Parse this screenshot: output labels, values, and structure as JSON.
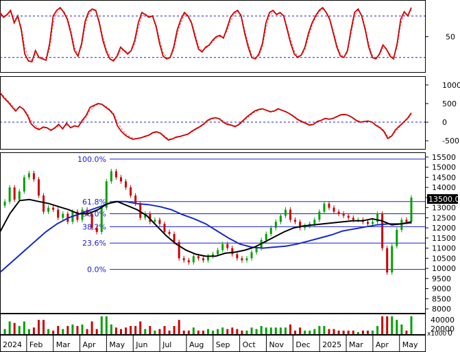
{
  "chart_data": [
    {
      "type": "line",
      "panel": "stochastic",
      "ylim": [
        0,
        100
      ],
      "yticks": [
        50
      ],
      "reference_lines": [
        20,
        80
      ],
      "series": [
        {
          "values": [
            85,
            78,
            82,
            88,
            70,
            80,
            60,
            25,
            15,
            14,
            30,
            20,
            18,
            16,
            40,
            80,
            88,
            92,
            85,
            75,
            55,
            30,
            22,
            40,
            72,
            86,
            90,
            88,
            70,
            45,
            28,
            18,
            15,
            22,
            35,
            30,
            25,
            30,
            45,
            70,
            85,
            82,
            78,
            80,
            65,
            40,
            22,
            18,
            20,
            35,
            60,
            75,
            85,
            80,
            70,
            50,
            32,
            28,
            35,
            38,
            45,
            50,
            52,
            48,
            62,
            78,
            85,
            88,
            80,
            55,
            35,
            20,
            18,
            25,
            40,
            70,
            85,
            88,
            82,
            85,
            80,
            60,
            40,
            25,
            20,
            24,
            35,
            55,
            70,
            80,
            88,
            92,
            85,
            75,
            55,
            35,
            22,
            20,
            30,
            60,
            85,
            90,
            80,
            60,
            35,
            20,
            18,
            25,
            38,
            32,
            22,
            18,
            40,
            75,
            86,
            80,
            92
          ]
        },
        {
          "values": [
            82,
            80,
            81,
            85,
            75,
            78,
            65,
            35,
            20,
            16,
            25,
            22,
            19,
            17,
            32,
            70,
            84,
            90,
            87,
            78,
            60,
            35,
            25,
            35,
            65,
            82,
            88,
            88,
            74,
            50,
            32,
            22,
            17,
            20,
            30,
            31,
            27,
            29,
            40,
            62,
            80,
            82,
            80,
            80,
            68,
            46,
            27,
            20,
            20,
            30,
            54,
            70,
            82,
            81,
            72,
            55,
            36,
            30,
            33,
            37,
            43,
            48,
            50,
            49,
            58,
            72,
            82,
            86,
            82,
            60,
            40,
            24,
            19,
            22,
            35,
            62,
            80,
            86,
            83,
            84,
            81,
            64,
            45,
            29,
            22,
            23,
            31,
            50,
            66,
            77,
            86,
            90,
            86,
            77,
            59,
            39,
            25,
            21,
            27,
            54,
            80,
            88,
            82,
            64,
            40,
            23,
            19,
            23,
            34,
            32,
            25,
            20,
            35,
            68,
            82,
            82,
            88
          ]
        }
      ]
    },
    {
      "type": "line",
      "panel": "oscillator",
      "ylim": [
        -700,
        1200
      ],
      "yticks": [
        1000,
        500,
        0,
        -500
      ],
      "reference_lines": [
        0
      ],
      "series": [
        {
          "values": [
            800,
            650,
            550,
            420,
            300,
            420,
            350,
            180,
            -50,
            -150,
            -200,
            -130,
            -150,
            -220,
            -150,
            -60,
            -180,
            -30,
            -150,
            -100,
            -120,
            50,
            180,
            400,
            450,
            500,
            480,
            400,
            320,
            200,
            -100,
            -250,
            -350,
            -420,
            -460,
            -440,
            -420,
            -380,
            -350,
            -280,
            -260,
            -300,
            -400,
            -480,
            -450,
            -400,
            -380,
            -350,
            -320,
            -240,
            -180,
            -120,
            -50,
            50,
            100,
            120,
            90,
            0,
            -60,
            -80,
            -120,
            -60,
            40,
            140,
            220,
            300,
            340,
            360,
            320,
            280,
            300,
            360,
            320,
            280,
            220,
            150,
            70,
            20,
            -30,
            -80,
            -60,
            20,
            50,
            100,
            80,
            100,
            150,
            200,
            210,
            180,
            120,
            40,
            0,
            20,
            30,
            0,
            -90,
            -150,
            -250,
            -440,
            -370,
            -200,
            -100,
            0,
            100,
            250
          ]
        },
        {
          "values": [
            780,
            700,
            580,
            470,
            350,
            400,
            360,
            230,
            30,
            -80,
            -180,
            -160,
            -150,
            -200,
            -170,
            -100,
            -150,
            -80,
            -130,
            -110,
            -110,
            10,
            120,
            320,
            420,
            480,
            480,
            430,
            350,
            240,
            0,
            -170,
            -300,
            -380,
            -430,
            -440,
            -430,
            -400,
            -360,
            -300,
            -270,
            -290,
            -370,
            -450,
            -450,
            -420,
            -390,
            -360,
            -330,
            -260,
            -200,
            -140,
            -70,
            20,
            80,
            110,
            100,
            30,
            -30,
            -70,
            -100,
            -80,
            10,
            100,
            190,
            270,
            320,
            350,
            330,
            290,
            290,
            340,
            330,
            290,
            230,
            170,
            90,
            30,
            -10,
            -60,
            -60,
            0,
            40,
            90,
            85,
            95,
            140,
            180,
            200,
            185,
            130,
            60,
            15,
            15,
            25,
            5,
            -70,
            -130,
            -220,
            -380,
            -380,
            -250,
            -130,
            -20,
            80,
            200
          ]
        }
      ]
    },
    {
      "type": "line",
      "panel": "price",
      "ylim": [
        7800,
        15700
      ],
      "yticks": [
        8000,
        8500,
        9000,
        9500,
        10000,
        10500,
        11000,
        11500,
        12000,
        12500,
        13000,
        13500,
        14000,
        14500,
        15000,
        15500
      ],
      "x_ticks": [
        "2024",
        "Feb",
        "Mar",
        "Apr",
        "May",
        "Jun",
        "Jul",
        "Aug",
        "Sep",
        "Oct",
        "Nov",
        "Dec",
        "2025",
        "Mar",
        "Apr",
        "May"
      ],
      "last_price_label": "13500.00",
      "fibonacci": [
        {
          "label": "100.0%",
          "value": 15400
        },
        {
          "label": "61.8%",
          "value": 13300
        },
        {
          "label": "50.0%",
          "value": 12700
        },
        {
          "label": "38.2%",
          "value": 12060
        },
        {
          "label": "23.6%",
          "value": 11250
        },
        {
          "label": "0.0%",
          "value": 9950
        }
      ],
      "series": [
        {
          "values": [
            13100,
            13300,
            14000,
            13400,
            13800,
            14500,
            14700,
            14400,
            13600,
            12800,
            13000,
            12900,
            12500,
            12700,
            12300,
            12800,
            12400,
            12900,
            12700,
            12000,
            11800,
            13000,
            14300,
            14800,
            14500,
            14300,
            14000,
            13600,
            13200,
            12500,
            12700,
            12300,
            12400,
            12200,
            11800,
            11700,
            11300,
            10500,
            10400,
            10300,
            10600,
            10500,
            10400,
            10600,
            10700,
            10900,
            11200,
            11000,
            10700,
            10500,
            10400,
            10500,
            10800,
            11000,
            11400,
            11700,
            12000,
            12300,
            12600,
            12900,
            12400,
            12300,
            12000,
            12100,
            12200,
            12400,
            12800,
            13200,
            13000,
            12800,
            12700,
            12600,
            12500,
            12400,
            12400,
            12300,
            12200,
            12300,
            12700,
            11000,
            9800,
            11100,
            11900,
            12400,
            12300,
            13500
          ]
        },
        {
          "values": [
            11800,
            12700,
            13350,
            13400,
            13300,
            13200,
            13050,
            12900,
            12700,
            12700,
            12900,
            13200,
            13300,
            13100,
            12900,
            12600,
            12100,
            11600,
            11200,
            10900,
            10700,
            10600,
            10600,
            10750,
            10800,
            10900,
            11050,
            11300,
            11550,
            11800,
            12000,
            12100,
            12150,
            12200,
            12250,
            12300,
            12350,
            12350,
            12450,
            12350,
            12150,
            12200,
            12300
          ]
        },
        {
          "values": [
            9800,
            10300,
            10800,
            11300,
            11800,
            12200,
            12500,
            12700,
            12900,
            13100,
            13300,
            13300,
            13200,
            13150,
            13050,
            12900,
            12650,
            12450,
            12200,
            11850,
            11500,
            11200,
            11050,
            11000,
            11050,
            11100,
            11200,
            11350,
            11500,
            11650,
            11850,
            11950,
            12050,
            12150,
            12200,
            12200,
            12250
          ]
        }
      ]
    }
  ]
}
